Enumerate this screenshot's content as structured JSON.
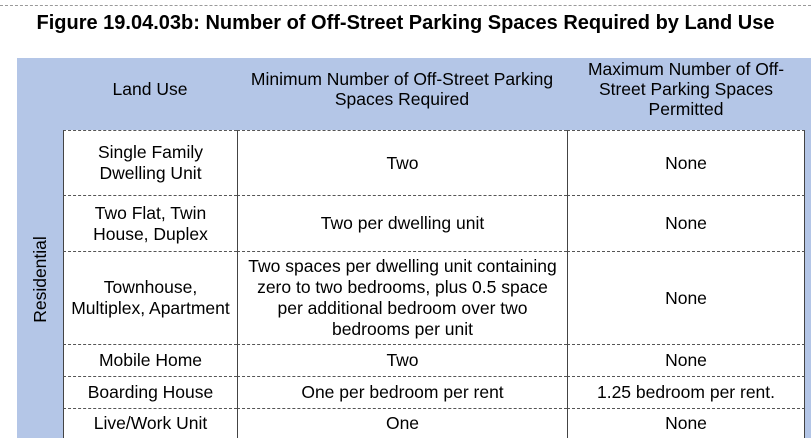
{
  "figure_title": "Figure 19.04.03b: Number of Off-Street Parking Spaces Required by Land Use",
  "side_category": "Residential",
  "columns": [
    "Land Use",
    "Minimum Number of Off-Street Parking Spaces Required",
    "Maximum Number of Off-Street Parking Spaces Permitted"
  ],
  "rows": [
    {
      "land_use": "Single Family Dwelling Unit",
      "minimum": "Two",
      "maximum": "None"
    },
    {
      "land_use": "Two Flat, Twin House, Duplex",
      "minimum": "Two per dwelling unit",
      "maximum": "None"
    },
    {
      "land_use": "Townhouse, Multiplex, Apartment",
      "minimum": "Two spaces per dwelling unit containing zero to two bedrooms, plus 0.5 space per additional bedroom over two bedrooms per unit",
      "maximum": "None"
    },
    {
      "land_use": "Mobile Home",
      "minimum": "Two",
      "maximum": "None"
    },
    {
      "land_use": "Boarding House",
      "minimum": "One per bedroom per rent",
      "maximum": "1.25 bedroom per rent."
    },
    {
      "land_use": "Live/Work Unit",
      "minimum": "One",
      "maximum": "None"
    }
  ]
}
